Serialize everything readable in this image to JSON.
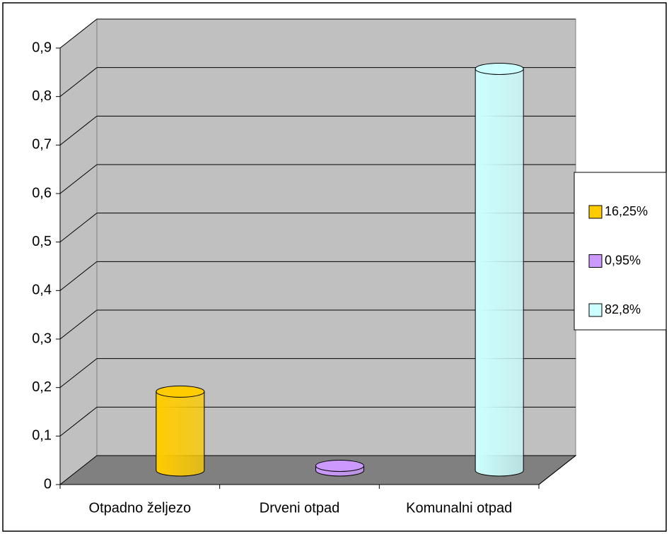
{
  "chart_data": {
    "type": "bar3d",
    "categories": [
      "Otpadno željezo",
      "Drveni otpad",
      "Komunalni otpad"
    ],
    "series": [
      {
        "name": "16,25%",
        "color": "#ffcc00",
        "values": [
          0.1625,
          null,
          null
        ]
      },
      {
        "name": "0,95%",
        "color": "#cc99ff",
        "values": [
          null,
          0.0095,
          null
        ]
      },
      {
        "name": "82,8%",
        "color": "#ccffff",
        "values": [
          null,
          null,
          0.828
        ]
      }
    ],
    "ylim": [
      0,
      0.9
    ],
    "yticks": [
      0,
      {
        "value": 0.1,
        "label": "0,1"
      },
      {
        "value": 0.2,
        "label": "0,2"
      },
      {
        "value": 0.3,
        "label": "0,3"
      },
      {
        "value": 0.4,
        "label": "0,4"
      },
      {
        "value": 0.5,
        "label": "0,5"
      },
      {
        "value": 0.6,
        "label": "0,6"
      },
      {
        "value": 0.7,
        "label": "0,7"
      },
      {
        "value": 0.8,
        "label": "0,8"
      },
      {
        "value": 0.9,
        "label": "0,9"
      }
    ],
    "grid": true,
    "legend": "right"
  }
}
